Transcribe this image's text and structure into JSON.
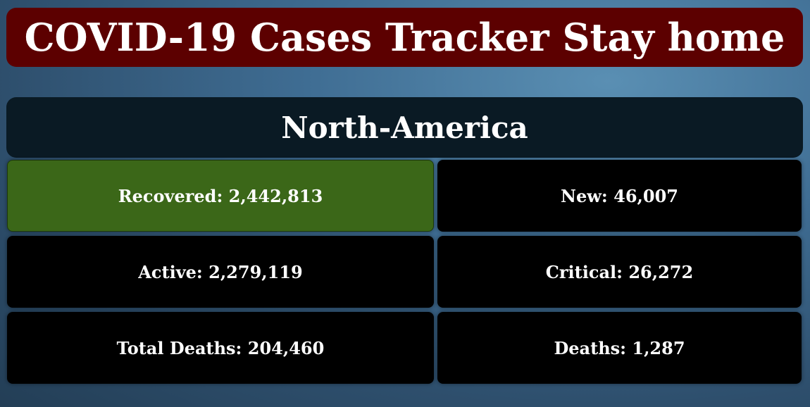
{
  "header": {
    "title": "COVID-19 Cases Tracker Stay home"
  },
  "region": {
    "name": "North-America"
  },
  "stats": {
    "recovered": "Recovered: 2,442,813",
    "new": "New: 46,007",
    "active": "Active: 2,279,119",
    "critical": "Critical: 26,272",
    "total_deaths": "Total Deaths: 204,460",
    "deaths": "Deaths: 1,287"
  },
  "colors": {
    "header_bg": "#5c0000",
    "region_bg": "#0a1a24",
    "recovered_bg": "#3b6718",
    "card_bg": "#000000",
    "text": "#ffffff"
  }
}
